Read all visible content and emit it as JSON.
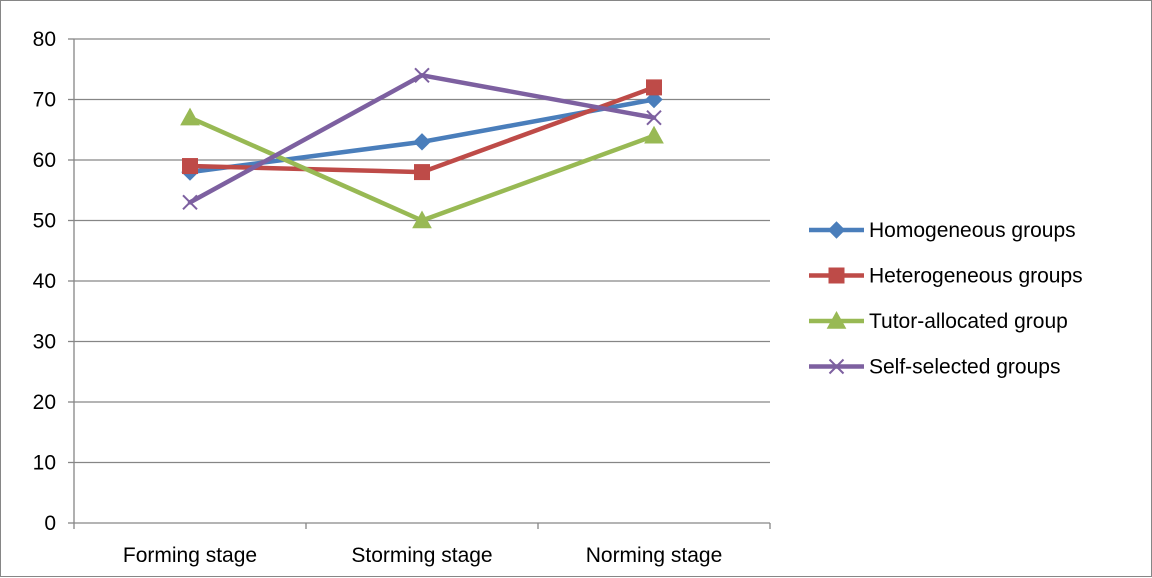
{
  "chart_data": {
    "type": "line",
    "categories": [
      "Forming stage",
      "Storming stage",
      "Norming stage"
    ],
    "ylim": [
      0,
      80
    ],
    "yticks": [
      0,
      10,
      20,
      30,
      40,
      50,
      60,
      70,
      80
    ],
    "grid": true,
    "legend_position": "right",
    "title": "",
    "xlabel": "",
    "ylabel": "",
    "series": [
      {
        "name": "Homogeneous groups",
        "values": [
          58,
          63,
          70
        ],
        "color": "#4A7EBB",
        "marker": "diamond"
      },
      {
        "name": "Heterogeneous groups",
        "values": [
          59,
          58,
          72
        ],
        "color": "#BE4B48",
        "marker": "square"
      },
      {
        "name": "Tutor-allocated group",
        "values": [
          67,
          50,
          64
        ],
        "color": "#98B954",
        "marker": "triangle"
      },
      {
        "name": "Self-selected groups",
        "values": [
          53,
          74,
          67
        ],
        "color": "#7D60A0",
        "marker": "x"
      }
    ]
  }
}
